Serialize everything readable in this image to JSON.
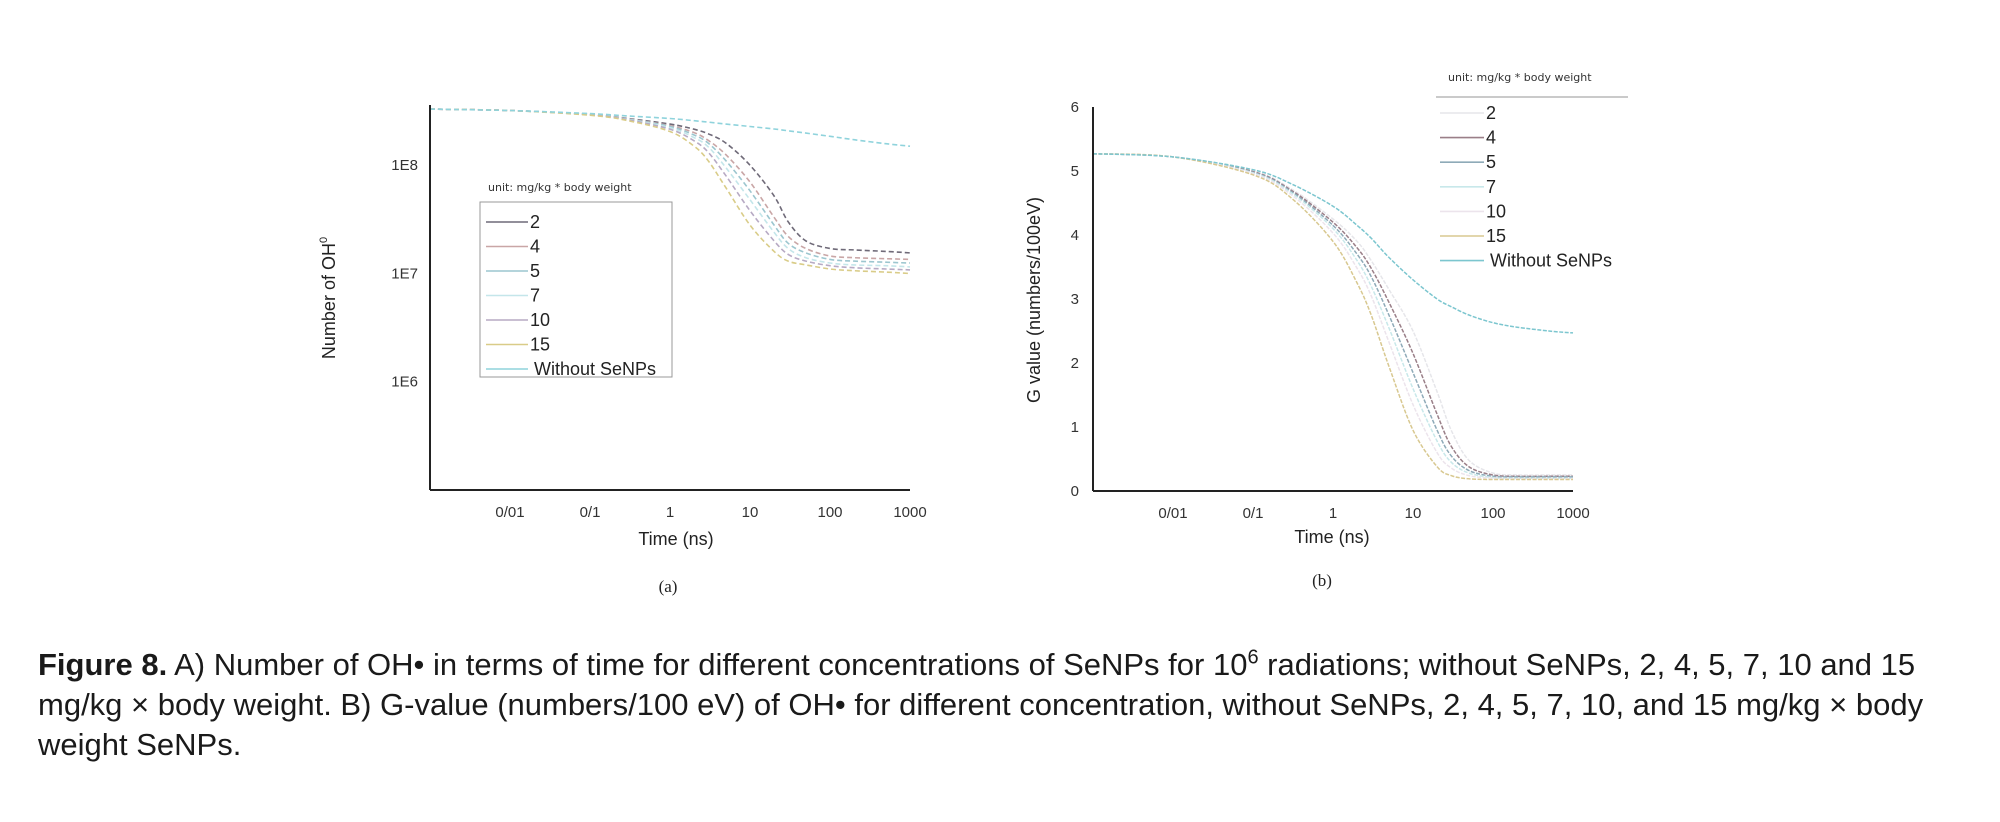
{
  "figure": {
    "caption": {
      "label": "Figure 8.",
      "text_part1": " A) Number of OH• in terms of time for different concentrations of SeNPs for 10",
      "superscript": "6",
      "text_part2": " radiations; without SeNPs, 2, 4, 5, 7, 10 and 15 mg/kg × body weight. B) G-value (numbers/100 eV) of OH• for different concentration, without SeNPs, 2, 4, 5, 7, 10, and 15 mg/kg × body weight SeNPs."
    }
  },
  "chart_data": [
    {
      "type": "line",
      "panel_label": "(a)",
      "title": "",
      "xlabel": "Time (ns)",
      "ylabel": "Number of OH",
      "ylabel_superscript": "0",
      "xscale": "log",
      "yscale": "log",
      "xlim": [
        0.001,
        1000
      ],
      "ylim": [
        100000,
        360000000
      ],
      "xticks": [
        0.01,
        0.1,
        1,
        10,
        100,
        1000
      ],
      "xtick_labels": [
        "0/01",
        "0/1",
        "1",
        "10",
        "100",
        "1000"
      ],
      "yticks": [
        100000000,
        10000000,
        1000000
      ],
      "ytick_labels": [
        "1E8",
        "1E7",
        "1E6"
      ],
      "grid": false,
      "legend": {
        "title": "unit: mg/kg * body weight",
        "placement": "center-left",
        "boxed": true
      },
      "x": [
        0.001,
        0.01,
        0.1,
        0.3,
        1,
        2,
        3,
        5,
        10,
        20,
        30,
        50,
        100,
        200,
        500,
        1000
      ],
      "series": [
        {
          "name": "2",
          "color": "#6f6a78",
          "values": [
            330000000,
            320000000,
            295000000,
            270000000,
            240000000,
            215000000,
            195000000,
            160000000,
            100000000,
            52000000,
            30000000,
            20000000,
            17000000,
            16500000,
            16000000,
            15500000
          ]
        },
        {
          "name": "4",
          "color": "#c9a6a6",
          "values": [
            330000000,
            320000000,
            295000000,
            268000000,
            232000000,
            200000000,
            170000000,
            125000000,
            70000000,
            33000000,
            22000000,
            17000000,
            14500000,
            14000000,
            13700000,
            13500000
          ]
        },
        {
          "name": "5",
          "color": "#9cc6cf",
          "values": [
            330000000,
            320000000,
            294000000,
            266000000,
            228000000,
            190000000,
            160000000,
            110000000,
            58000000,
            28000000,
            19000000,
            15500000,
            13500000,
            13000000,
            12700000,
            12500000
          ]
        },
        {
          "name": "7",
          "color": "#c4e6ea",
          "values": [
            330000000,
            320000000,
            293000000,
            264000000,
            222000000,
            180000000,
            148000000,
            95000000,
            48000000,
            24000000,
            17000000,
            14000000,
            12500000,
            12000000,
            11800000,
            11500000
          ]
        },
        {
          "name": "10",
          "color": "#b7aac4",
          "values": [
            330000000,
            320000000,
            292000000,
            262000000,
            215000000,
            168000000,
            132000000,
            80000000,
            38000000,
            20000000,
            15000000,
            13000000,
            11800000,
            11300000,
            11000000,
            10800000
          ]
        },
        {
          "name": "15",
          "color": "#d9cc88",
          "values": [
            330000000,
            320000000,
            290000000,
            258000000,
            205000000,
            150000000,
            110000000,
            62000000,
            28000000,
            16000000,
            13000000,
            12000000,
            11000000,
            10600000,
            10300000,
            10000000
          ]
        },
        {
          "name": "Without SeNPs",
          "color": "#8fd3dc",
          "values": [
            330000000,
            320000000,
            300000000,
            285000000,
            270000000,
            258000000,
            250000000,
            240000000,
            228000000,
            216000000,
            208000000,
            198000000,
            185000000,
            172000000,
            158000000,
            150000000
          ]
        }
      ]
    },
    {
      "type": "line",
      "panel_label": "(b)",
      "title": "",
      "xlabel": "Time (ns)",
      "ylabel": "G value (numbers/100eV)",
      "xscale": "log",
      "yscale": "linear",
      "xlim": [
        0.001,
        1000
      ],
      "ylim": [
        0,
        6
      ],
      "xticks": [
        0.01,
        0.1,
        1,
        10,
        100,
        1000
      ],
      "xtick_labels": [
        "0/01",
        "0/1",
        "1",
        "10",
        "100",
        "1000"
      ],
      "yticks": [
        0,
        1,
        2,
        3,
        4,
        5,
        6
      ],
      "ytick_labels": [
        "0",
        "1",
        "2",
        "3",
        "4",
        "5",
        "6"
      ],
      "grid": false,
      "legend": {
        "title": "unit: mg/kg * body weight",
        "placement": "top-right",
        "boxed": false
      },
      "x": [
        0.001,
        0.01,
        0.1,
        0.3,
        1,
        2,
        3,
        5,
        10,
        20,
        30,
        50,
        100,
        200,
        500,
        1000
      ],
      "series": [
        {
          "name": "2",
          "color": "#e6e6ea",
          "values": [
            5.27,
            5.22,
            5.0,
            4.72,
            4.25,
            3.9,
            3.6,
            3.15,
            2.5,
            1.55,
            0.95,
            0.48,
            0.28,
            0.25,
            0.25,
            0.25
          ]
        },
        {
          "name": "4",
          "color": "#9a7f88",
          "values": [
            5.27,
            5.22,
            4.99,
            4.7,
            4.2,
            3.8,
            3.48,
            2.95,
            2.15,
            1.2,
            0.7,
            0.38,
            0.25,
            0.23,
            0.23,
            0.23
          ]
        },
        {
          "name": "5",
          "color": "#8eaab8",
          "values": [
            5.27,
            5.22,
            4.98,
            4.68,
            4.15,
            3.7,
            3.35,
            2.75,
            1.85,
            0.95,
            0.55,
            0.32,
            0.23,
            0.22,
            0.22,
            0.22
          ]
        },
        {
          "name": "7",
          "color": "#c8e8ea",
          "values": [
            5.27,
            5.22,
            4.97,
            4.66,
            4.1,
            3.6,
            3.2,
            2.55,
            1.6,
            0.78,
            0.45,
            0.28,
            0.21,
            0.2,
            0.2,
            0.2
          ]
        },
        {
          "name": "10",
          "color": "#ece4ec",
          "values": [
            5.27,
            5.22,
            4.96,
            4.63,
            4.03,
            3.48,
            3.05,
            2.33,
            1.35,
            0.6,
            0.36,
            0.24,
            0.2,
            0.19,
            0.19,
            0.19
          ]
        },
        {
          "name": "15",
          "color": "#d8c890",
          "values": [
            5.27,
            5.22,
            4.94,
            4.58,
            3.9,
            3.25,
            2.75,
            1.95,
            0.95,
            0.38,
            0.24,
            0.19,
            0.18,
            0.18,
            0.18,
            0.18
          ]
        },
        {
          "name": "Without SeNPs",
          "color": "#7cc6cf",
          "values": [
            5.27,
            5.22,
            5.02,
            4.8,
            4.45,
            4.15,
            3.95,
            3.65,
            3.3,
            3.0,
            2.88,
            2.75,
            2.63,
            2.56,
            2.5,
            2.47
          ]
        }
      ]
    }
  ]
}
